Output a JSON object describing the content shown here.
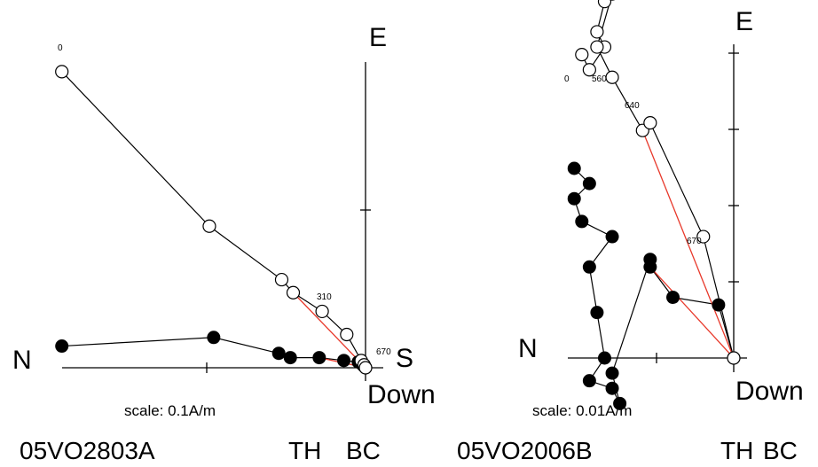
{
  "chart_data": [
    {
      "type": "scatter",
      "axis_labels": {
        "north": "N",
        "east": "E",
        "south": "S",
        "down": "Down"
      },
      "scale_label": "scale: 0.1A/m",
      "sample_name": "05VO2803A",
      "tags": [
        "TH",
        "BC"
      ],
      "horizontal_points": [
        [
          -0.21,
          0.015
        ],
        [
          -0.105,
          0.021
        ],
        [
          -0.06,
          0.01
        ],
        [
          -0.052,
          0.007
        ],
        [
          -0.032,
          0.007
        ],
        [
          -0.015,
          0.005
        ],
        [
          -0.005,
          0.004
        ],
        [
          -0.002,
          0.002
        ],
        [
          -0.001,
          0.001
        ],
        [
          0.0,
          0.0
        ]
      ],
      "vertical_points": [
        [
          -0.21,
          0.205
        ],
        [
          -0.108,
          0.098
        ],
        [
          -0.058,
          0.061
        ],
        [
          -0.05,
          0.052
        ],
        [
          -0.03,
          0.039
        ],
        [
          -0.013,
          0.023
        ],
        [
          -0.003,
          0.005
        ],
        [
          -0.001,
          0.002
        ],
        [
          0.0,
          0.0
        ]
      ],
      "step_labels": [
        "0",
        "310",
        "670"
      ],
      "fit_lines": [
        [
          [
            -0.05,
            0.052
          ],
          [
            0.0,
            0.0
          ]
        ],
        [
          [
            -0.032,
            0.007
          ],
          [
            0.0,
            0.0
          ]
        ]
      ]
    },
    {
      "type": "scatter",
      "axis_labels": {
        "north": "N",
        "east": "E",
        "down": "Down"
      },
      "scale_label": "scale: 0.01A/m",
      "sample_name": "05VO2006B",
      "tags": [
        "TH",
        "BC"
      ],
      "horizontal_points": [
        [
          -0.021,
          0.025
        ],
        [
          -0.019,
          0.023
        ],
        [
          -0.021,
          0.021
        ],
        [
          -0.02,
          0.018
        ],
        [
          -0.016,
          0.016
        ],
        [
          -0.019,
          0.012
        ],
        [
          -0.018,
          0.006
        ],
        [
          -0.017,
          0.0
        ],
        [
          -0.019,
          -0.003
        ],
        [
          -0.016,
          -0.004
        ],
        [
          -0.015,
          -0.006
        ],
        [
          -0.016,
          -0.002
        ],
        [
          -0.011,
          0.013
        ],
        [
          -0.011,
          0.012
        ],
        [
          -0.008,
          0.008
        ],
        [
          -0.002,
          0.007
        ],
        [
          0.0,
          0.0
        ]
      ],
      "vertical_points": [
        [
          -0.02,
          0.04
        ],
        [
          -0.019,
          0.038
        ],
        [
          -0.017,
          0.041
        ],
        [
          -0.018,
          0.043
        ],
        [
          -0.017,
          0.047
        ],
        [
          -0.016,
          0.048
        ],
        [
          -0.018,
          0.041
        ],
        [
          -0.016,
          0.037
        ],
        [
          -0.012,
          0.03
        ],
        [
          -0.011,
          0.031
        ],
        [
          -0.004,
          0.016
        ],
        [
          0.0,
          0.0
        ]
      ],
      "step_labels": [
        "0",
        "560",
        "640",
        "670"
      ],
      "fit_lines": [
        [
          [
            -0.012,
            0.03
          ],
          [
            0.0,
            0.0
          ]
        ],
        [
          [
            -0.011,
            0.012
          ],
          [
            0.0,
            0.0
          ]
        ]
      ]
    }
  ]
}
